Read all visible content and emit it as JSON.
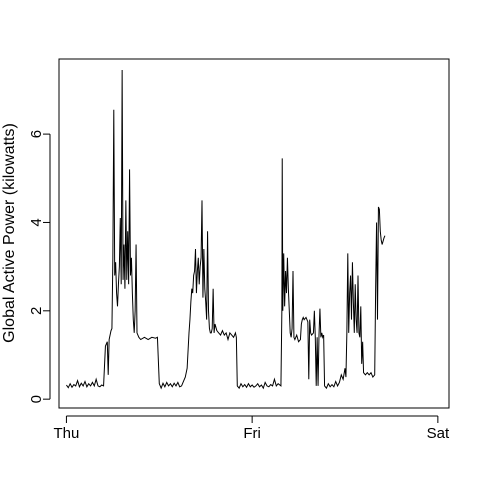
{
  "chart_data": {
    "type": "line",
    "title": "",
    "xlabel": "",
    "ylabel": "Global Active Power (kilowatts)",
    "x_ticks": [
      {
        "label": "Thu",
        "day": 0
      },
      {
        "label": "Fri",
        "day": 1
      },
      {
        "label": "Sat",
        "day": 2
      }
    ],
    "y_ticks": [
      0,
      2,
      4,
      6
    ],
    "xlim": [
      -0.04,
      2.06
    ],
    "ylim": [
      -0.2,
      7.7
    ],
    "grid": false,
    "legend": "none",
    "series": [
      {
        "color": "#000000",
        "points": [
          [
            0.0,
            0.32
          ],
          [
            0.01,
            0.26
          ],
          [
            0.02,
            0.35
          ],
          [
            0.03,
            0.27
          ],
          [
            0.04,
            0.33
          ],
          [
            0.05,
            0.3
          ],
          [
            0.06,
            0.42
          ],
          [
            0.07,
            0.28
          ],
          [
            0.08,
            0.36
          ],
          [
            0.09,
            0.3
          ],
          [
            0.1,
            0.4
          ],
          [
            0.11,
            0.28
          ],
          [
            0.12,
            0.35
          ],
          [
            0.13,
            0.3
          ],
          [
            0.14,
            0.38
          ],
          [
            0.15,
            0.3
          ],
          [
            0.16,
            0.45
          ],
          [
            0.17,
            0.3
          ],
          [
            0.18,
            0.28
          ],
          [
            0.19,
            0.32
          ],
          [
            0.2,
            0.3
          ],
          [
            0.21,
            1.2
          ],
          [
            0.22,
            1.3
          ],
          [
            0.225,
            0.55
          ],
          [
            0.23,
            1.35
          ],
          [
            0.24,
            1.55
          ],
          [
            0.245,
            1.6
          ],
          [
            0.25,
            3.2
          ],
          [
            0.255,
            6.55
          ],
          [
            0.26,
            2.8
          ],
          [
            0.265,
            3.1
          ],
          [
            0.27,
            2.4
          ],
          [
            0.275,
            2.1
          ],
          [
            0.28,
            2.6
          ],
          [
            0.285,
            3.0
          ],
          [
            0.29,
            4.1
          ],
          [
            0.295,
            2.6
          ],
          [
            0.3,
            7.45
          ],
          [
            0.305,
            2.7
          ],
          [
            0.31,
            3.5
          ],
          [
            0.315,
            2.5
          ],
          [
            0.32,
            4.5
          ],
          [
            0.325,
            2.7
          ],
          [
            0.33,
            3.8
          ],
          [
            0.335,
            2.6
          ],
          [
            0.34,
            5.2
          ],
          [
            0.345,
            2.8
          ],
          [
            0.35,
            3.2
          ],
          [
            0.355,
            2.4
          ],
          [
            0.36,
            1.8
          ],
          [
            0.365,
            1.5
          ],
          [
            0.37,
            2.0
          ],
          [
            0.375,
            3.5
          ],
          [
            0.38,
            1.5
          ],
          [
            0.39,
            1.4
          ],
          [
            0.4,
            1.35
          ],
          [
            0.42,
            1.4
          ],
          [
            0.44,
            1.35
          ],
          [
            0.46,
            1.4
          ],
          [
            0.48,
            1.38
          ],
          [
            0.49,
            1.4
          ],
          [
            0.5,
            0.35
          ],
          [
            0.51,
            0.25
          ],
          [
            0.52,
            0.36
          ],
          [
            0.53,
            0.28
          ],
          [
            0.54,
            0.38
          ],
          [
            0.55,
            0.3
          ],
          [
            0.56,
            0.35
          ],
          [
            0.57,
            0.28
          ],
          [
            0.58,
            0.36
          ],
          [
            0.59,
            0.3
          ],
          [
            0.6,
            0.38
          ],
          [
            0.61,
            0.28
          ],
          [
            0.62,
            0.3
          ],
          [
            0.63,
            0.4
          ],
          [
            0.64,
            0.5
          ],
          [
            0.65,
            0.7
          ],
          [
            0.66,
            1.5
          ],
          [
            0.665,
            1.8
          ],
          [
            0.67,
            2.2
          ],
          [
            0.675,
            2.5
          ],
          [
            0.68,
            2.4
          ],
          [
            0.685,
            2.8
          ],
          [
            0.69,
            2.9
          ],
          [
            0.695,
            3.4
          ],
          [
            0.7,
            2.4
          ],
          [
            0.705,
            2.9
          ],
          [
            0.71,
            3.2
          ],
          [
            0.715,
            2.6
          ],
          [
            0.72,
            3.0
          ],
          [
            0.725,
            3.2
          ],
          [
            0.73,
            4.5
          ],
          [
            0.735,
            2.3
          ],
          [
            0.74,
            3.4
          ],
          [
            0.745,
            2.5
          ],
          [
            0.75,
            2.2
          ],
          [
            0.755,
            1.8
          ],
          [
            0.76,
            3.8
          ],
          [
            0.765,
            2.0
          ],
          [
            0.77,
            1.6
          ],
          [
            0.775,
            1.5
          ],
          [
            0.78,
            1.5
          ],
          [
            0.785,
            1.6
          ],
          [
            0.79,
            2.5
          ],
          [
            0.795,
            1.5
          ],
          [
            0.8,
            1.7
          ],
          [
            0.81,
            1.55
          ],
          [
            0.82,
            1.5
          ],
          [
            0.83,
            1.45
          ],
          [
            0.84,
            1.55
          ],
          [
            0.85,
            1.45
          ],
          [
            0.86,
            1.5
          ],
          [
            0.87,
            1.35
          ],
          [
            0.88,
            1.5
          ],
          [
            0.89,
            1.45
          ],
          [
            0.9,
            1.4
          ],
          [
            0.91,
            1.5
          ],
          [
            0.915,
            1.4
          ],
          [
            0.92,
            0.3
          ],
          [
            0.93,
            0.25
          ],
          [
            0.94,
            0.35
          ],
          [
            0.95,
            0.28
          ],
          [
            0.96,
            0.33
          ],
          [
            0.97,
            0.27
          ],
          [
            0.98,
            0.35
          ],
          [
            0.99,
            0.28
          ],
          [
            1.0,
            0.32
          ],
          [
            1.01,
            0.27
          ],
          [
            1.02,
            0.3
          ],
          [
            1.03,
            0.35
          ],
          [
            1.04,
            0.28
          ],
          [
            1.05,
            0.32
          ],
          [
            1.06,
            0.25
          ],
          [
            1.07,
            0.38
          ],
          [
            1.08,
            0.3
          ],
          [
            1.09,
            0.28
          ],
          [
            1.1,
            0.33
          ],
          [
            1.11,
            0.3
          ],
          [
            1.12,
            0.45
          ],
          [
            1.13,
            0.3
          ],
          [
            1.14,
            0.35
          ],
          [
            1.155,
            0.3
          ],
          [
            1.16,
            2.0
          ],
          [
            1.162,
            5.45
          ],
          [
            1.165,
            2.0
          ],
          [
            1.17,
            3.3
          ],
          [
            1.175,
            2.1
          ],
          [
            1.18,
            2.9
          ],
          [
            1.185,
            2.4
          ],
          [
            1.19,
            3.2
          ],
          [
            1.195,
            2.5
          ],
          [
            1.2,
            2.0
          ],
          [
            1.205,
            1.5
          ],
          [
            1.21,
            1.4
          ],
          [
            1.215,
            1.6
          ],
          [
            1.22,
            2.9
          ],
          [
            1.225,
            1.4
          ],
          [
            1.23,
            1.35
          ],
          [
            1.24,
            1.45
          ],
          [
            1.25,
            1.3
          ],
          [
            1.26,
            1.35
          ],
          [
            1.265,
            1.7
          ],
          [
            1.27,
            1.8
          ],
          [
            1.275,
            1.85
          ],
          [
            1.28,
            1.8
          ],
          [
            1.29,
            1.85
          ],
          [
            1.3,
            1.75
          ],
          [
            1.305,
            0.45
          ],
          [
            1.31,
            1.8
          ],
          [
            1.315,
            1.5
          ],
          [
            1.32,
            1.45
          ],
          [
            1.33,
            1.5
          ],
          [
            1.335,
            2.0
          ],
          [
            1.34,
            1.4
          ],
          [
            1.345,
            0.3
          ],
          [
            1.35,
            1.4
          ],
          [
            1.355,
            0.3
          ],
          [
            1.36,
            1.45
          ],
          [
            1.365,
            2.05
          ],
          [
            1.37,
            1.4
          ],
          [
            1.375,
            1.5
          ],
          [
            1.38,
            1.4
          ],
          [
            1.385,
            1.45
          ],
          [
            1.39,
            0.3
          ],
          [
            1.4,
            0.25
          ],
          [
            1.41,
            0.35
          ],
          [
            1.42,
            0.28
          ],
          [
            1.43,
            0.33
          ],
          [
            1.44,
            0.28
          ],
          [
            1.45,
            0.4
          ],
          [
            1.46,
            0.3
          ],
          [
            1.47,
            0.38
          ],
          [
            1.48,
            0.55
          ],
          [
            1.49,
            0.45
          ],
          [
            1.5,
            0.7
          ],
          [
            1.505,
            0.5
          ],
          [
            1.51,
            1.5
          ],
          [
            1.515,
            3.3
          ],
          [
            1.52,
            1.5
          ],
          [
            1.525,
            2.4
          ],
          [
            1.53,
            2.8
          ],
          [
            1.535,
            1.8
          ],
          [
            1.54,
            3.1
          ],
          [
            1.545,
            2.2
          ],
          [
            1.55,
            1.5
          ],
          [
            1.555,
            2.6
          ],
          [
            1.56,
            1.8
          ],
          [
            1.565,
            1.5
          ],
          [
            1.57,
            2.8
          ],
          [
            1.575,
            1.5
          ],
          [
            1.58,
            1.4
          ],
          [
            1.585,
            2.1
          ],
          [
            1.59,
            0.8
          ],
          [
            1.595,
            1.3
          ],
          [
            1.6,
            0.6
          ],
          [
            1.61,
            0.55
          ],
          [
            1.62,
            0.6
          ],
          [
            1.63,
            0.55
          ],
          [
            1.64,
            0.6
          ],
          [
            1.65,
            0.5
          ],
          [
            1.66,
            0.55
          ],
          [
            1.665,
            2.5
          ],
          [
            1.67,
            4.0
          ],
          [
            1.675,
            1.8
          ],
          [
            1.68,
            4.35
          ],
          [
            1.685,
            4.3
          ],
          [
            1.69,
            3.8
          ],
          [
            1.695,
            3.6
          ],
          [
            1.7,
            3.5
          ],
          [
            1.71,
            3.65
          ],
          [
            1.715,
            3.7
          ]
        ]
      }
    ]
  }
}
